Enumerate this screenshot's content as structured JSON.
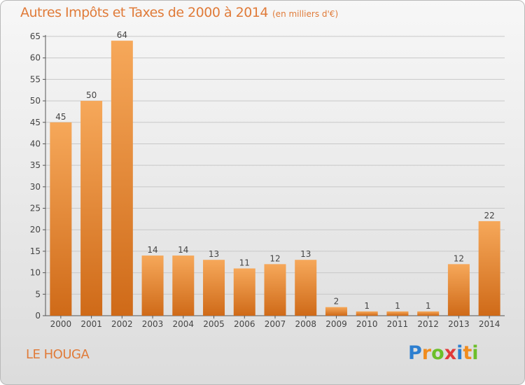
{
  "header": {
    "title": "Autres Impôts et Taxes de 2000 à 2014",
    "subtitle": "(en milliers d'€)"
  },
  "footer": {
    "commune": "LE HOUGA",
    "logo_letters": [
      "P",
      "r",
      "o",
      "x",
      "i",
      "t",
      "i"
    ],
    "logo_colors": [
      "#2d7fd0",
      "#f08c1e",
      "#6cbf2a",
      "#e23a3a",
      "#2d7fd0",
      "#f08c1e",
      "#6cbf2a"
    ]
  },
  "colors": {
    "bar_light": "#f6a85a",
    "bar_dark": "#cf6a18",
    "accent": "#e07b39",
    "grid": "#c8c8c8"
  },
  "chart_data": {
    "type": "bar",
    "title": "Autres Impôts et Taxes de 2000 à 2014",
    "subtitle": "(en milliers d'€)",
    "categories": [
      "2000",
      "2001",
      "2002",
      "2003",
      "2004",
      "2005",
      "2006",
      "2007",
      "2008",
      "2009",
      "2010",
      "2011",
      "2012",
      "2013",
      "2014"
    ],
    "values": [
      45,
      50,
      64,
      14,
      14,
      13,
      11,
      12,
      13,
      2,
      1,
      1,
      1,
      12,
      22
    ],
    "ylim": [
      0,
      65
    ],
    "yticks": [
      0,
      5,
      10,
      15,
      20,
      25,
      30,
      35,
      40,
      45,
      50,
      55,
      60,
      65
    ],
    "grid": true,
    "data_labels": true,
    "xlabel": "",
    "ylabel": ""
  }
}
